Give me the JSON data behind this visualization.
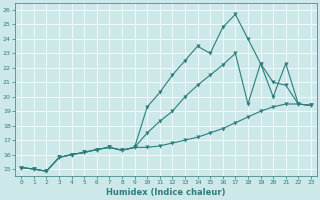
{
  "xlabel": "Humidex (Indice chaleur)",
  "bg_color": "#cce8e8",
  "line_color": "#2d7d7d",
  "marker": "v",
  "marker_size": 2.5,
  "line_width": 0.8,
  "xlim": [
    -0.5,
    23.5
  ],
  "ylim": [
    14.5,
    26.5
  ],
  "xticks": [
    0,
    1,
    2,
    3,
    4,
    5,
    6,
    7,
    8,
    9,
    10,
    11,
    12,
    13,
    14,
    15,
    16,
    17,
    18,
    19,
    20,
    21,
    22,
    23
  ],
  "yticks": [
    15,
    16,
    17,
    18,
    19,
    20,
    21,
    22,
    23,
    24,
    25,
    26
  ],
  "line1_x": [
    0,
    1,
    2,
    3,
    4,
    5,
    6,
    7,
    8,
    9,
    10,
    11,
    12,
    13,
    14,
    15,
    16,
    17,
    18,
    19,
    20,
    21,
    22,
    23
  ],
  "line1_y": [
    15.1,
    15.0,
    14.85,
    15.8,
    16.0,
    16.15,
    16.35,
    16.5,
    16.3,
    16.5,
    19.3,
    20.3,
    21.5,
    22.5,
    23.5,
    23.0,
    24.8,
    25.7,
    24.0,
    22.3,
    20.0,
    22.3,
    19.5,
    19.4
  ],
  "line2_x": [
    0,
    1,
    2,
    3,
    4,
    5,
    6,
    7,
    8,
    9,
    10,
    11,
    12,
    13,
    14,
    15,
    16,
    17,
    18,
    19,
    20,
    21,
    22,
    23
  ],
  "line2_y": [
    15.1,
    15.0,
    14.85,
    15.8,
    16.0,
    16.15,
    16.35,
    16.5,
    16.3,
    16.5,
    17.5,
    18.3,
    19.0,
    20.0,
    20.8,
    21.5,
    22.2,
    23.0,
    19.5,
    22.3,
    21.0,
    20.8,
    19.5,
    19.4
  ],
  "line3_x": [
    0,
    1,
    2,
    3,
    4,
    5,
    6,
    7,
    8,
    9,
    10,
    11,
    12,
    13,
    14,
    15,
    16,
    17,
    18,
    19,
    20,
    21,
    22,
    23
  ],
  "line3_y": [
    15.1,
    15.0,
    14.85,
    15.8,
    16.0,
    16.15,
    16.35,
    16.5,
    16.3,
    16.5,
    16.5,
    16.6,
    16.8,
    17.0,
    17.2,
    17.5,
    17.8,
    18.2,
    18.6,
    19.0,
    19.3,
    19.5,
    19.5,
    19.4
  ],
  "xlabel_fontsize": 6,
  "tick_fontsize": 4.5,
  "grid_color": "#ffffff",
  "grid_lw": 0.5
}
